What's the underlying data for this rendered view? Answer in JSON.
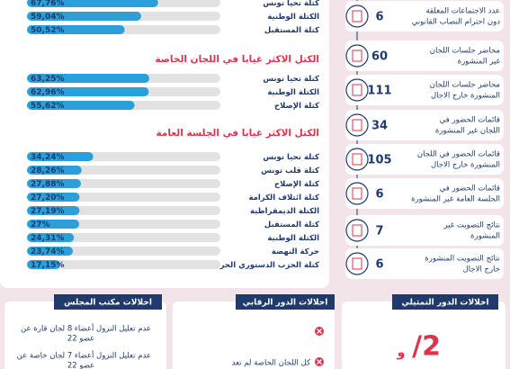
{
  "chart_data": [
    {
      "type": "bar",
      "orientation": "horizontal",
      "color": "#2b9fd9",
      "categories": [
        "كتلة تحيا تونس",
        "الكتلة الوطنية",
        "كتلة المستقبل"
      ],
      "values": [
        67.76,
        59.04,
        50.52
      ],
      "value_labels": [
        "67,76%",
        "59,04%",
        "50,52%"
      ]
    },
    {
      "type": "bar",
      "orientation": "horizontal",
      "color": "#2b9fd9",
      "title": "الكتل الاكثر غيابا في اللجان الخاصة",
      "categories": [
        "كتلة تحيا تونس",
        "الكتلة الوطنية",
        "كتلة الإصلاح"
      ],
      "values": [
        63.25,
        62.96,
        55.62
      ],
      "value_labels": [
        "63,25%",
        "62,96%",
        "55,62%"
      ]
    },
    {
      "type": "bar",
      "orientation": "horizontal",
      "color": "#2b9fd9",
      "title": "الكتل الاكثر غيابا في الجلسة العامة",
      "categories": [
        "كتلة تحيا تونس",
        "كتلة قلب تونس",
        "كتلة الإصلاح",
        "كتلة ائتلاف الكرامة",
        "الكتلة الديمقراطية",
        "كتلة المستقبل",
        "الكتلة الوطنية",
        "حركة النهضة",
        "كتلة الحزب الدستوري الحر"
      ],
      "values": [
        34.24,
        28.26,
        27.88,
        27.2,
        27.19,
        27,
        24.31,
        23.74,
        17.15
      ],
      "value_labels": [
        "34,24%",
        "28,26%",
        "27,88%",
        "27,20%",
        "27,19%",
        "27%",
        "24,31%",
        "23,74%",
        "17,15%"
      ]
    }
  ],
  "stats": [
    {
      "value": "6",
      "label": [
        "عدد الاجتماعات المغلقة",
        "دون احترام النصاب القانوني"
      ]
    },
    {
      "value": "60",
      "label": [
        "محاضر جلسات اللجان",
        "غير المنشورة"
      ]
    },
    {
      "value": "111",
      "label": [
        "محاضر جلسات اللجان",
        "المنشورة خارج الاجال"
      ]
    },
    {
      "value": "34",
      "label": [
        "قائمات الحضور في",
        "اللجان غير المنشورة"
      ]
    },
    {
      "value": "105",
      "label": [
        "قائمات الحضور في اللجان",
        "المنشورة خارج الاجال"
      ]
    },
    {
      "value": "6",
      "label": [
        "قائمات الحضور في",
        "الجلسة العامة غير المنشورة"
      ]
    },
    {
      "value": "7",
      "label": [
        "نتائج التصويت غير",
        "المنشورة"
      ]
    },
    {
      "value": "6",
      "label": [
        "نتائج التصويت المنشورة",
        "خارج الاجال"
      ]
    }
  ],
  "panels": {
    "bureau": {
      "title": "اخلالات مكتب المجلس",
      "items": [
        [
          "عدم تعليل النزول أعضاء 8 لجان قارة عن",
          "22 عضو"
        ],
        [
          "عدم تعليل النزول أعضاء 7 لجان خاصة عن",
          "22 عضو"
        ]
      ]
    },
    "oversight": {
      "title": "اخلالات الدور الرقابي",
      "items": [
        "كل اللجان الخاصة لم تعد"
      ]
    },
    "representative": {
      "title": "اخلالات الدور التمثيلي",
      "figure": "/2",
      "prefix": "و"
    }
  }
}
